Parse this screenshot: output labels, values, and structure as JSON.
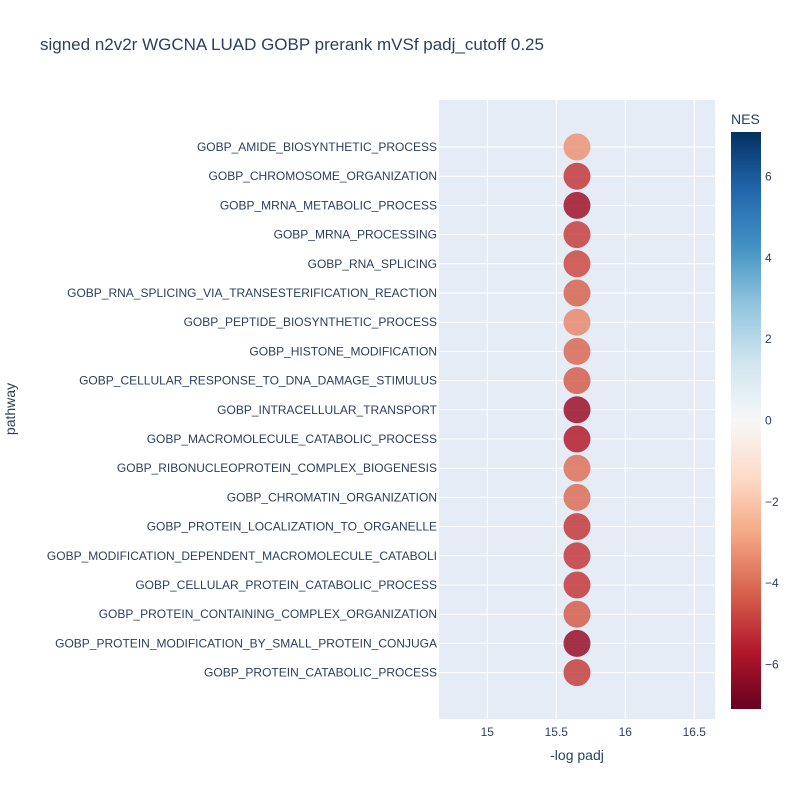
{
  "chart_data": {
    "type": "scatter",
    "title": "signed n2v2r WGCNA LUAD GOBP prerank mVSf padj_cutoff 0.25",
    "xlabel": "-log padj",
    "ylabel": "pathway",
    "xlim": [
      14.65,
      16.65
    ],
    "xticks": [
      15,
      15.5,
      16,
      16.5
    ],
    "xtick_labels": [
      "15",
      "15.5",
      "16",
      "16.5"
    ],
    "grid": true,
    "colorbar": {
      "title": "NES",
      "range": [
        -7.1,
        7.1
      ],
      "ticks": [
        6,
        4,
        2,
        0,
        -2,
        -4,
        -6
      ],
      "tick_labels": [
        "6",
        "4",
        "2",
        "0",
        "−2",
        "−4",
        "−6"
      ],
      "colorscale": [
        "#67001f",
        "#b2182b",
        "#d6604d",
        "#f4a582",
        "#fddbc7",
        "#f7f7f7",
        "#d1e5f0",
        "#92c5de",
        "#4393c3",
        "#2166ac",
        "#053061"
      ]
    },
    "categories": [
      "GOBP_AMIDE_BIOSYNTHETIC_PROCESS",
      "GOBP_CHROMOSOME_ORGANIZATION",
      "GOBP_MRNA_METABOLIC_PROCESS",
      "GOBP_MRNA_PROCESSING",
      "GOBP_RNA_SPLICING",
      "GOBP_RNA_SPLICING_VIA_TRANSESTERIFICATION_REACTION",
      "GOBP_PEPTIDE_BIOSYNTHETIC_PROCESS",
      "GOBP_HISTONE_MODIFICATION",
      "GOBP_CELLULAR_RESPONSE_TO_DNA_DAMAGE_STIMULUS",
      "GOBP_INTRACELLULAR_TRANSPORT",
      "GOBP_MACROMOLECULE_CATABOLIC_PROCESS",
      "GOBP_RIBONUCLEOPROTEIN_COMPLEX_BIOGENESIS",
      "GOBP_CHROMATIN_ORGANIZATION",
      "GOBP_PROTEIN_LOCALIZATION_TO_ORGANELLE",
      "GOBP_MODIFICATION_DEPENDENT_MACROMOLECULE_CATABOLI",
      "GOBP_CELLULAR_PROTEIN_CATABOLIC_PROCESS",
      "GOBP_PROTEIN_CONTAINING_COMPLEX_ORGANIZATION",
      "GOBP_PROTEIN_MODIFICATION_BY_SMALL_PROTEIN_CONJUGA",
      "GOBP_PROTEIN_CATABOLIC_PROCESS"
    ],
    "x": [
      15.65,
      15.65,
      15.65,
      15.65,
      15.65,
      15.65,
      15.65,
      15.65,
      15.65,
      15.65,
      15.65,
      15.65,
      15.65,
      15.65,
      15.65,
      15.65,
      15.65,
      15.65,
      15.65
    ],
    "nes": [
      -3.2,
      -5.0,
      -6.0,
      -4.9,
      -4.7,
      -4.2,
      -3.4,
      -4.1,
      -4.3,
      -6.1,
      -5.6,
      -3.9,
      -4.0,
      -5.0,
      -5.0,
      -5.0,
      -4.3,
      -6.2,
      -4.9
    ]
  }
}
